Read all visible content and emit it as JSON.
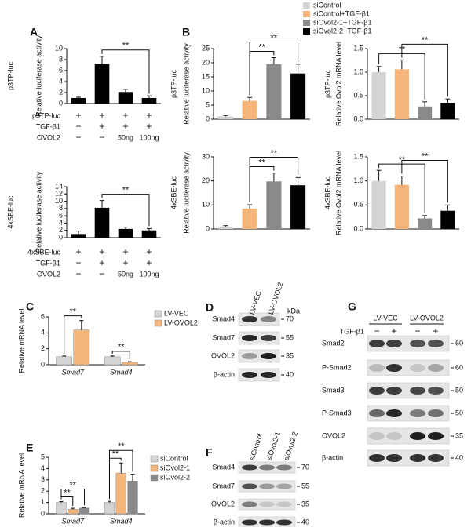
{
  "panel_labels": [
    "A",
    "B",
    "C",
    "D",
    "E",
    "F",
    "G"
  ],
  "legend": {
    "items": [
      {
        "name": "siControl",
        "color": "#d4d4d4"
      },
      {
        "name": "siControl+TGF-β1",
        "color": "#f5b57a"
      },
      {
        "name": "siOvol2-1+TGF-β1",
        "color": "#8a8a8a"
      },
      {
        "name": "siOvol2-2+TGF-β1",
        "color": "#000000"
      }
    ]
  },
  "chart_data": [
    {
      "type": "bar",
      "side_label": "p3TP-luc",
      "ylabel": "Relative luciferase activity",
      "color": "#000000",
      "values": [
        1.0,
        7.2,
        2.1,
        1.0
      ],
      "errors": [
        0.15,
        1.4,
        0.5,
        0.4
      ],
      "ylim": [
        0,
        10
      ],
      "yticks": [
        0,
        2,
        4,
        6,
        8,
        10
      ],
      "brackets": [
        {
          "label": "**",
          "between": [
            1,
            3
          ]
        }
      ],
      "rows": [
        {
          "label": "p3TP-luc",
          "cells": [
            "+",
            "+",
            "+",
            "+"
          ]
        },
        {
          "label": "TGF-β1",
          "cells": [
            "−",
            "+",
            "+",
            "+"
          ]
        },
        {
          "label": "OVOL2",
          "cells": [
            "−",
            "−",
            "50ng",
            "100ng"
          ]
        }
      ]
    },
    {
      "type": "bar",
      "side_label": "4xSBE-luc",
      "ylabel": "Relative luciferase activity",
      "color": "#000000",
      "values": [
        1.0,
        8.2,
        2.4,
        2.0
      ],
      "errors": [
        0.8,
        2.0,
        0.5,
        0.5
      ],
      "ylim": [
        0,
        14
      ],
      "yticks": [
        0,
        2,
        4,
        6,
        8,
        10,
        12,
        14
      ],
      "brackets": [
        {
          "label": "**",
          "between": [
            1,
            3
          ]
        }
      ],
      "rows": [
        {
          "label": "4xSBE-luc",
          "cells": [
            "+",
            "+",
            "+",
            "+"
          ]
        },
        {
          "label": "TGF-β1",
          "cells": [
            "−",
            "+",
            "+",
            "+"
          ]
        },
        {
          "label": "OVOL2",
          "cells": [
            "−",
            "−",
            "50ng",
            "100ng"
          ]
        }
      ]
    },
    {
      "type": "bar",
      "side_label": "p3TP-luc",
      "ylabel": "Relative luciferase activity",
      "values": [
        1.0,
        6.5,
        19.5,
        16.2
      ],
      "errors": [
        0.3,
        1.2,
        2.3,
        3.3
      ],
      "ylim": [
        0,
        25
      ],
      "yticks": [
        0,
        5,
        10,
        15,
        20,
        25
      ],
      "brackets": [
        {
          "label": "**",
          "between": [
            1,
            2
          ]
        },
        {
          "label": "**",
          "between": [
            1,
            3
          ]
        }
      ]
    },
    {
      "type": "bar",
      "side_label": "p3TP-luc",
      "ylabel": "Relative Ovol2 mRNA level",
      "values": [
        1.0,
        1.06,
        0.27,
        0.35
      ],
      "errors": [
        0.12,
        0.2,
        0.1,
        0.08
      ],
      "ylim": [
        0,
        1.5
      ],
      "yticks": [
        {
          "value": 0,
          "label": "0.0"
        },
        {
          "value": 0.5,
          "label": "0.5"
        },
        {
          "value": 1,
          "label": "1.0"
        },
        {
          "value": 1.5,
          "label": "1.5"
        }
      ],
      "brackets": [
        {
          "label": "**",
          "between": [
            0,
            2
          ]
        },
        {
          "label": "**",
          "between": [
            1,
            3
          ]
        }
      ]
    },
    {
      "type": "bar",
      "side_label": "4xSBE-luc",
      "ylabel": "Relative luciferase activity",
      "values": [
        1.0,
        8.5,
        19.8,
        18.2
      ],
      "errors": [
        0.4,
        1.6,
        3.5,
        3.2
      ],
      "ylim": [
        0,
        30
      ],
      "yticks": [
        0,
        10,
        20,
        30
      ],
      "brackets": [
        {
          "label": "**",
          "between": [
            1,
            2
          ]
        },
        {
          "label": "**",
          "between": [
            1,
            3
          ]
        }
      ]
    },
    {
      "type": "bar",
      "side_label": "4xSBE-luc",
      "ylabel": "Relative Ovol2 mRNA level",
      "values": [
        1.0,
        0.92,
        0.22,
        0.38
      ],
      "errors": [
        0.22,
        0.18,
        0.06,
        0.12
      ],
      "ylim": [
        0,
        1.5
      ],
      "yticks": [
        {
          "value": 0,
          "label": "0.0"
        },
        {
          "value": 0.5,
          "label": "0.5"
        },
        {
          "value": 1,
          "label": "1.0"
        },
        {
          "value": 1.5,
          "label": "1.5"
        }
      ],
      "brackets": [
        {
          "label": "**",
          "between": [
            0,
            2
          ]
        },
        {
          "label": "**",
          "between": [
            1,
            3
          ]
        }
      ]
    },
    {
      "type": "grouped_bar",
      "ylabel": "Relative mRNA level",
      "categories": [
        "Smad7",
        "Smad4"
      ],
      "series": [
        {
          "name": "LV-VEC",
          "color": "#d4d4d4",
          "values": [
            1.0,
            1.0
          ],
          "errors": [
            0.1,
            0.1
          ]
        },
        {
          "name": "LV-OVOL2",
          "color": "#f5b57a",
          "values": [
            4.35,
            0.3
          ],
          "errors": [
            1.2,
            0.08
          ]
        }
      ],
      "ylim": [
        0,
        6
      ],
      "yticks": [
        0,
        2,
        4,
        6
      ],
      "brackets": [
        {
          "label": "**",
          "category": 0,
          "between": [
            0,
            1
          ]
        },
        {
          "label": "**",
          "category": 1,
          "between": [
            0,
            1
          ]
        }
      ]
    },
    {
      "type": "grouped_bar",
      "ylabel": "Relative mRNA level",
      "categories": [
        "Smad7",
        "Smad4"
      ],
      "series": [
        {
          "name": "siControl",
          "color": "#d4d4d4",
          "values": [
            1.0,
            1.0
          ],
          "errors": [
            0.08,
            0.1
          ]
        },
        {
          "name": "siOvol2-1",
          "color": "#f5b57a",
          "values": [
            0.4,
            3.6
          ],
          "errors": [
            0.08,
            0.9
          ]
        },
        {
          "name": "siOvol2-2",
          "color": "#8a8a8a",
          "values": [
            0.5,
            2.9
          ],
          "errors": [
            0.05,
            0.6
          ]
        }
      ],
      "ylim": [
        0,
        5
      ],
      "yticks": [
        0,
        1,
        2,
        3,
        4,
        5
      ],
      "brackets": [
        {
          "label": "**",
          "category": 0,
          "between": [
            0,
            1
          ]
        },
        {
          "label": "**",
          "category": 0,
          "between": [
            0,
            2
          ]
        },
        {
          "label": "**",
          "category": 1,
          "between": [
            0,
            1
          ]
        },
        {
          "label": "**",
          "category": 1,
          "between": [
            0,
            2
          ]
        }
      ]
    }
  ],
  "blots": [
    {
      "unit": "kDa",
      "columns": [
        "LV-VEC",
        "LV-OVOL2"
      ],
      "rows": [
        {
          "label": "Smad4",
          "marker": 70
        },
        {
          "label": "Smad7",
          "marker": 55
        },
        {
          "label": "OVOL2",
          "marker": 35
        },
        {
          "label": "β-actin",
          "marker": 40
        }
      ]
    },
    {
      "columns": [
        "siControl",
        "siOvol2-1",
        "siOvol2-2"
      ],
      "rows": [
        {
          "label": "Smad4",
          "marker": 70
        },
        {
          "label": "Smad7",
          "marker": 55
        },
        {
          "label": "OVOL2",
          "marker": 35
        },
        {
          "label": "β-actin",
          "marker": 40
        }
      ]
    },
    {
      "groups": [
        "LV-VEC",
        "LV-OVOL2"
      ],
      "treatment": {
        "label": "TGF-β1",
        "cells": [
          "−",
          "+",
          "−",
          "+"
        ]
      },
      "rows": [
        {
          "label": "Smad2",
          "marker": 60
        },
        {
          "label": "P-Smad2",
          "marker": 60
        },
        {
          "label": "Smad3",
          "marker": 50
        },
        {
          "label": "P-Smad3",
          "marker": 50
        },
        {
          "label": "OVOL2",
          "marker": 35
        },
        {
          "label": "β-actin",
          "marker": 40
        }
      ]
    }
  ]
}
